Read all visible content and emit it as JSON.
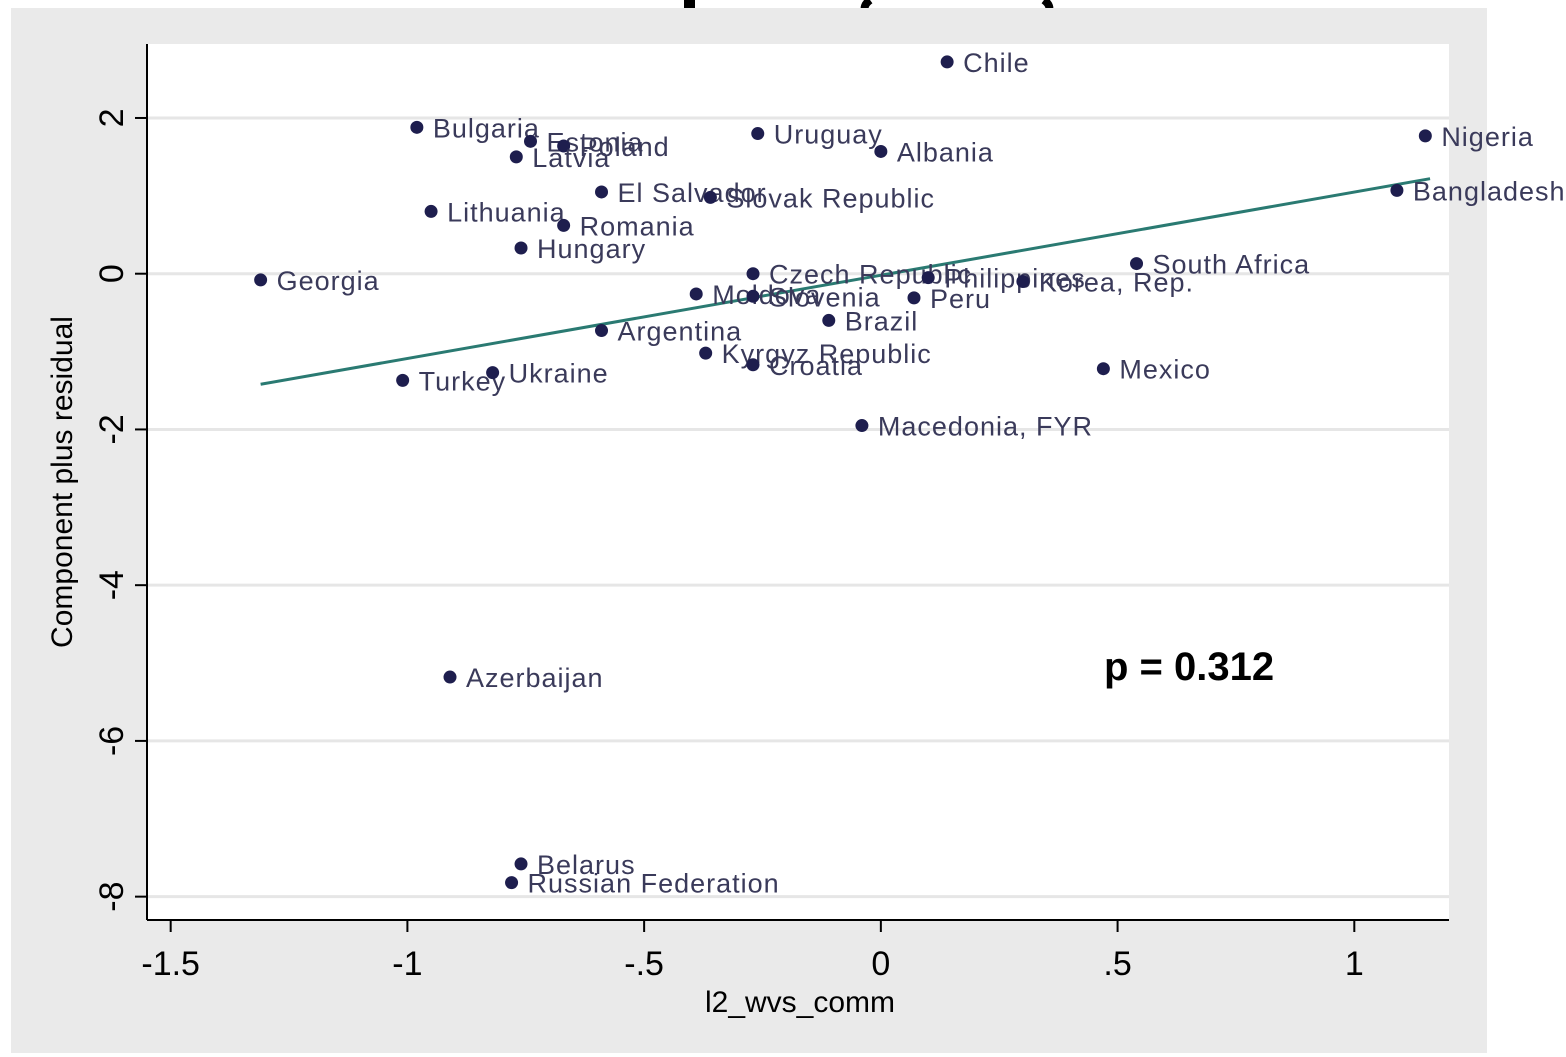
{
  "chart_data": {
    "type": "scatter",
    "title": "",
    "xlabel": "l2_wvs_comm",
    "ylabel": "Component plus residual",
    "xlim": [
      -1.55,
      1.2
    ],
    "ylim": [
      -8.3,
      2.95
    ],
    "xticks": [
      -1.5,
      -1,
      -0.5,
      0,
      0.5,
      1
    ],
    "xtick_labels": [
      "-1.5",
      "-1",
      "-.5",
      "0",
      ".5",
      "1"
    ],
    "yticks": [
      -8,
      -6,
      -4,
      -2,
      0,
      2
    ],
    "ytick_labels": [
      "-8",
      "-6",
      "-4",
      "-2",
      "0",
      "2"
    ],
    "grid": true,
    "annotation": "p = 0.312",
    "colors": {
      "points": "#1e1e4e",
      "fit_line": "#2a7a72",
      "plot_bg": "#ffffff",
      "frame_bg": "#eaeaea",
      "grid": "#e6e6e6"
    },
    "fit_line": {
      "x": [
        -1.31,
        1.16
      ],
      "y": [
        -1.42,
        1.22
      ]
    },
    "points": [
      {
        "label": "Chile",
        "x": 0.14,
        "y": 2.72
      },
      {
        "label": "Bulgaria",
        "x": -0.98,
        "y": 1.88
      },
      {
        "label": "Estonia",
        "x": -0.74,
        "y": 1.7
      },
      {
        "label": "Poland",
        "x": -0.67,
        "y": 1.64
      },
      {
        "label": "Latvia",
        "x": -0.77,
        "y": 1.5
      },
      {
        "label": "Uruguay",
        "x": -0.26,
        "y": 1.8
      },
      {
        "label": "Albania",
        "x": 0.0,
        "y": 1.57
      },
      {
        "label": "Nigeria",
        "x": 1.15,
        "y": 1.77
      },
      {
        "label": "Bangladesh",
        "x": 1.09,
        "y": 1.07
      },
      {
        "label": "El Salvador",
        "x": -0.59,
        "y": 1.05
      },
      {
        "label": "Slovak Republic",
        "x": -0.36,
        "y": 0.98
      },
      {
        "label": "Lithuania",
        "x": -0.95,
        "y": 0.8
      },
      {
        "label": "Romania",
        "x": -0.67,
        "y": 0.62
      },
      {
        "label": "Hungary",
        "x": -0.76,
        "y": 0.33
      },
      {
        "label": "Georgia",
        "x": -1.31,
        "y": -0.08
      },
      {
        "label": "Czech Republic",
        "x": -0.27,
        "y": 0.0
      },
      {
        "label": "Philippines",
        "x": 0.1,
        "y": -0.05
      },
      {
        "label": "Korea, Rep.",
        "x": 0.3,
        "y": -0.1
      },
      {
        "label": "South Africa",
        "x": 0.54,
        "y": 0.13
      },
      {
        "label": "Moldova",
        "x": -0.39,
        "y": -0.26
      },
      {
        "label": "Slovenia",
        "x": -0.27,
        "y": -0.29
      },
      {
        "label": "Peru",
        "x": 0.07,
        "y": -0.31
      },
      {
        "label": "Brazil",
        "x": -0.11,
        "y": -0.6
      },
      {
        "label": "Argentina",
        "x": -0.59,
        "y": -0.73
      },
      {
        "label": "Kyrgyz Republic",
        "x": -0.37,
        "y": -1.02
      },
      {
        "label": "Croatia",
        "x": -0.27,
        "y": -1.17
      },
      {
        "label": "Mexico",
        "x": 0.47,
        "y": -1.22
      },
      {
        "label": "Turkey",
        "x": -1.01,
        "y": -1.37
      },
      {
        "label": "Ukraine",
        "x": -0.82,
        "y": -1.27
      },
      {
        "label": "Macedonia, FYR",
        "x": -0.04,
        "y": -1.95
      },
      {
        "label": "Azerbaijan",
        "x": -0.91,
        "y": -5.18
      },
      {
        "label": "Belarus",
        "x": -0.76,
        "y": -7.58
      },
      {
        "label": "Russian Federation",
        "x": -0.78,
        "y": -7.82
      }
    ]
  }
}
